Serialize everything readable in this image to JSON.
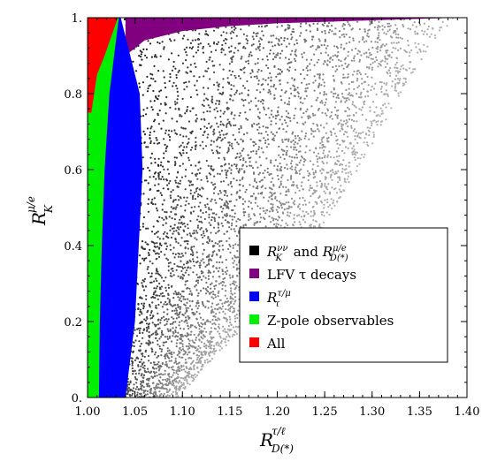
{
  "chart_data": {
    "type": "scatter",
    "xlabel": {
      "base": "R",
      "sup": "τ/ℓ",
      "sub": "D(*)"
    },
    "ylabel": {
      "base": "R",
      "sup": "μ/e",
      "sub": "K"
    },
    "xlim": [
      1.0,
      1.4
    ],
    "ylim": [
      0.0,
      1.0
    ],
    "x_ticks": [
      1.0,
      1.05,
      1.1,
      1.15,
      1.2,
      1.25,
      1.3,
      1.35,
      1.4
    ],
    "x_tick_labels": [
      "1.00",
      "1.05",
      "1.10",
      "1.15",
      "1.20",
      "1.25",
      "1.30",
      "1.35",
      "1.40"
    ],
    "y_ticks": [
      0.0,
      0.2,
      0.4,
      0.6,
      0.8,
      1.0
    ],
    "y_tick_labels": [
      "0.",
      "0.2",
      "0.4",
      "0.6",
      "0.8",
      "1."
    ],
    "grid": false,
    "legend_position": "lower-right",
    "series": [
      {
        "label_main": "R",
        "label_sup1": "νν",
        "label_sub1": "K",
        "label_and": " and ",
        "label_sup2": "μ/e",
        "label_sub2": "D(*)",
        "color": "#000000",
        "boundary_x_at_y": [
          [
            0.0,
            1.095
          ],
          [
            0.2,
            1.17
          ],
          [
            0.4,
            1.235
          ],
          [
            0.6,
            1.285
          ],
          [
            0.8,
            1.33
          ],
          [
            0.9,
            1.355
          ],
          [
            0.97,
            1.375
          ],
          [
            1.0,
            1.39
          ]
        ]
      },
      {
        "label": "LFV τ decays",
        "color": "#800080",
        "boundary_y_at_x": [
          [
            1.04,
            0.9
          ],
          [
            1.06,
            0.94
          ],
          [
            1.1,
            0.965
          ],
          [
            1.15,
            0.978
          ],
          [
            1.2,
            0.985
          ],
          [
            1.3,
            0.993
          ],
          [
            1.39,
            1.0
          ]
        ]
      },
      {
        "label_main": "R",
        "label_sup": "τ/μ",
        "label_sub": "τ",
        "color": "#0000ff",
        "boundary_x_at_y": [
          [
            0.0,
            1.04
          ],
          [
            0.2,
            1.05
          ],
          [
            0.4,
            1.054
          ],
          [
            0.6,
            1.058
          ],
          [
            0.8,
            1.055
          ],
          [
            0.9,
            1.045
          ],
          [
            1.0,
            1.035
          ]
        ]
      },
      {
        "label": "Z-pole observables",
        "color": "#00ee00",
        "boundary_x_at_y": [
          [
            0.0,
            1.012
          ],
          [
            0.2,
            1.013
          ],
          [
            0.4,
            1.015
          ],
          [
            0.6,
            1.018
          ],
          [
            0.8,
            1.023
          ],
          [
            0.9,
            1.028
          ],
          [
            1.0,
            1.033
          ]
        ]
      },
      {
        "label": "All",
        "color": "#ff0000",
        "boundary_x_at_y": [
          [
            0.75,
            1.004
          ],
          [
            0.85,
            1.01
          ],
          [
            0.9,
            1.018
          ],
          [
            0.95,
            1.025
          ],
          [
            1.0,
            1.032
          ]
        ]
      }
    ]
  }
}
